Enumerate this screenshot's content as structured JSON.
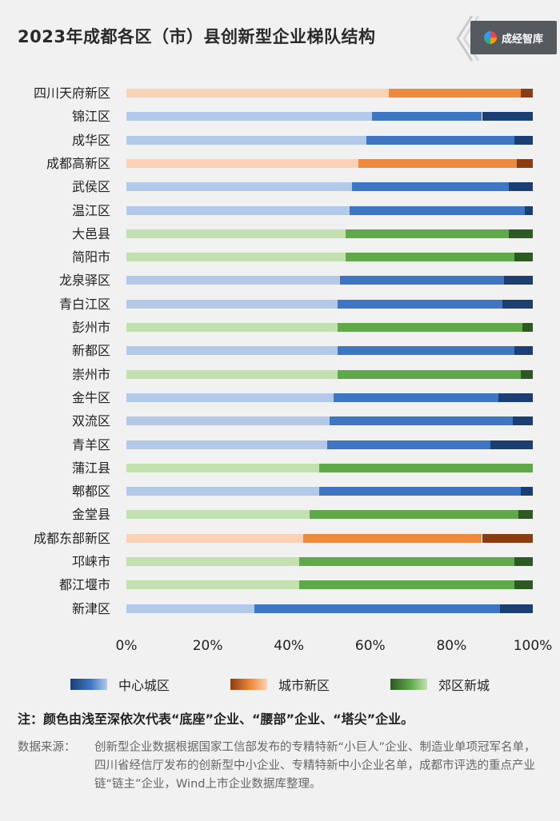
{
  "title": "2023年成都各区（市）县创新型企业梯队结构",
  "logo_text": "成经智库",
  "note": "注：颜色由浅至深依次代表“底座”企业、“腰部”企业、“塔尖”企业。",
  "source_label": "数据来源：",
  "source_text": "创新型企业数据根据国家工信部发布的专精特新“小巨人”企业、制造业单项冠军名单，四川省经信厅发布的创新型中小企业、专精特新中小企业名单，成都市评选的重点产业链“链主”企业，Wind上市企业数据库整理。",
  "colors": {
    "center": [
      "#b3c9ea",
      "#3e76c3",
      "#1b3f73"
    ],
    "newcity": [
      "#fbd2b5",
      "#ee8a3c",
      "#8c3d10"
    ],
    "suburb": [
      "#c3e1b0",
      "#5fa94a",
      "#2d5a22"
    ]
  },
  "chart_data": {
    "type": "bar",
    "orientation": "horizontal",
    "stacked": true,
    "xlim": [
      0,
      100
    ],
    "x_ticks": [
      "0%",
      "20%",
      "40%",
      "60%",
      "80%",
      "100%"
    ],
    "legend": [
      {
        "name": "中心城区",
        "group": "center"
      },
      {
        "name": "城市新区",
        "group": "newcity"
      },
      {
        "name": "郊区新城",
        "group": "suburb"
      }
    ],
    "categories": [
      {
        "name": "四川天府新区",
        "group": "newcity",
        "values": [
          64.5,
          32.5,
          3.0
        ]
      },
      {
        "name": "锦江区",
        "group": "center",
        "values": [
          60.5,
          27.0,
          12.5
        ]
      },
      {
        "name": "成华区",
        "group": "center",
        "values": [
          59.0,
          36.5,
          4.5
        ]
      },
      {
        "name": "成都高新区",
        "group": "newcity",
        "values": [
          57.0,
          39.0,
          4.0
        ]
      },
      {
        "name": "武侯区",
        "group": "center",
        "values": [
          55.5,
          38.5,
          6.0
        ]
      },
      {
        "name": "温江区",
        "group": "center",
        "values": [
          55.0,
          43.0,
          2.0
        ]
      },
      {
        "name": "大邑县",
        "group": "suburb",
        "values": [
          54.0,
          40.0,
          6.0
        ]
      },
      {
        "name": "简阳市",
        "group": "suburb",
        "values": [
          54.0,
          41.5,
          4.5
        ]
      },
      {
        "name": "龙泉驿区",
        "group": "center",
        "values": [
          52.5,
          40.5,
          7.0
        ]
      },
      {
        "name": "青白江区",
        "group": "center",
        "values": [
          52.0,
          40.5,
          7.5
        ]
      },
      {
        "name": "彭州市",
        "group": "suburb",
        "values": [
          52.0,
          45.5,
          2.5
        ]
      },
      {
        "name": "新都区",
        "group": "center",
        "values": [
          52.0,
          43.5,
          4.5
        ]
      },
      {
        "name": "崇州市",
        "group": "suburb",
        "values": [
          52.0,
          45.0,
          3.0
        ]
      },
      {
        "name": "金牛区",
        "group": "center",
        "values": [
          51.0,
          40.5,
          8.5
        ]
      },
      {
        "name": "双流区",
        "group": "center",
        "values": [
          50.0,
          45.0,
          5.0
        ]
      },
      {
        "name": "青羊区",
        "group": "center",
        "values": [
          49.5,
          40.0,
          10.5
        ]
      },
      {
        "name": "蒲江县",
        "group": "suburb",
        "values": [
          47.5,
          52.5,
          0.0
        ]
      },
      {
        "name": "郫都区",
        "group": "center",
        "values": [
          47.5,
          49.5,
          3.0
        ]
      },
      {
        "name": "金堂县",
        "group": "suburb",
        "values": [
          45.0,
          51.5,
          3.5
        ]
      },
      {
        "name": "成都东部新区",
        "group": "newcity",
        "values": [
          43.5,
          44.0,
          12.5
        ]
      },
      {
        "name": "邛崃市",
        "group": "suburb",
        "values": [
          42.5,
          53.0,
          4.5
        ]
      },
      {
        "name": "都江堰市",
        "group": "suburb",
        "values": [
          42.5,
          53.0,
          4.5
        ]
      },
      {
        "name": "新津区",
        "group": "center",
        "values": [
          31.5,
          60.5,
          8.0
        ]
      }
    ]
  }
}
